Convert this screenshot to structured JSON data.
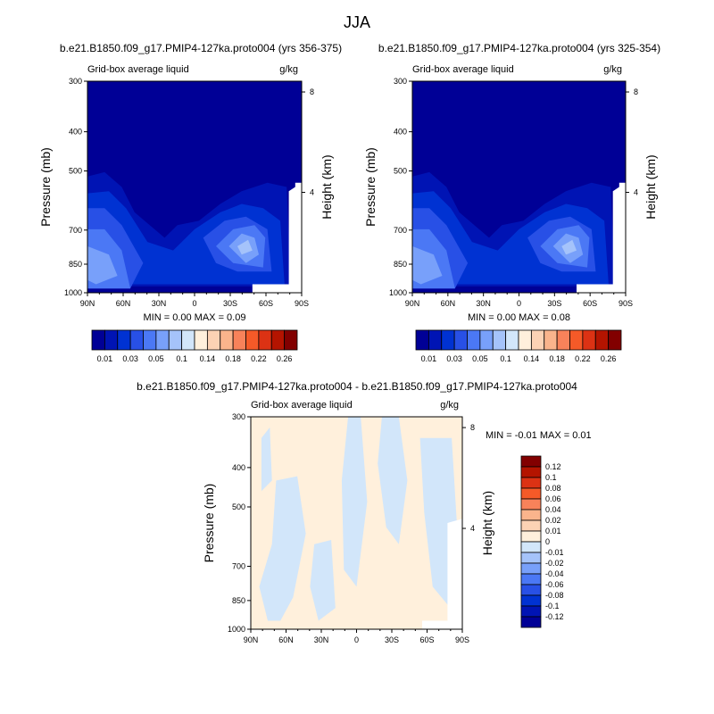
{
  "figure_title": "JJA",
  "colors": {
    "land_mask": "#ffffff",
    "axis": "#000000"
  },
  "chart_data": [
    {
      "type": "heatmap",
      "title": "b.e21.B1850.f09_g17.PMIP4-127ka.proto004 (yrs 356-375)",
      "left_label": "Grid-box average liquid",
      "right_label": "g/kg",
      "ylabel": "Pressure (mb)",
      "y2label": "Height (km)",
      "x_ticks": [
        "90N",
        "60N",
        "30N",
        "0",
        "30S",
        "60S",
        "90S"
      ],
      "x_values": [
        90,
        60,
        30,
        0,
        -30,
        -60,
        -90
      ],
      "y_ticks": [
        "300",
        "400",
        "500",
        "700",
        "850",
        "1000"
      ],
      "y_values": [
        300,
        400,
        500,
        700,
        850,
        1000
      ],
      "y2_ticks": [
        "8",
        "4"
      ],
      "y2_values": [
        8,
        4
      ],
      "ylim": [
        1000,
        300
      ],
      "stats": "MIN =   0.00   MAX =   0.09",
      "min": 0.0,
      "max": 0.09
    },
    {
      "type": "heatmap",
      "title": "b.e21.B1850.f09_g17.PMIP4-127ka.proto004 (yrs 325-354)",
      "left_label": "Grid-box average liquid",
      "right_label": "g/kg",
      "ylabel": "Pressure (mb)",
      "y2label": "Height (km)",
      "x_ticks": [
        "90N",
        "60N",
        "30N",
        "0",
        "30S",
        "60S",
        "90S"
      ],
      "x_values": [
        90,
        60,
        30,
        0,
        -30,
        -60,
        -90
      ],
      "y_ticks": [
        "300",
        "400",
        "500",
        "700",
        "850",
        "1000"
      ],
      "y_values": [
        300,
        400,
        500,
        700,
        850,
        1000
      ],
      "y2_ticks": [
        "8",
        "4"
      ],
      "y2_values": [
        8,
        4
      ],
      "ylim": [
        1000,
        300
      ],
      "stats": "MIN =   0.00   MAX =   0.08",
      "min": 0.0,
      "max": 0.08
    },
    {
      "type": "heatmap",
      "title": "b.e21.B1850.f09_g17.PMIP4-127ka.proto004 - b.e21.B1850.f09_g17.PMIP4-127ka.proto004",
      "left_label": "Grid-box average liquid",
      "right_label": "g/kg",
      "ylabel": "Pressure (mb)",
      "y2label": "Height (km)",
      "x_ticks": [
        "90N",
        "60N",
        "30N",
        "0",
        "30S",
        "60S",
        "90S"
      ],
      "x_values": [
        90,
        60,
        30,
        0,
        -30,
        -60,
        -90
      ],
      "y_ticks": [
        "300",
        "400",
        "500",
        "700",
        "850",
        "1000"
      ],
      "y_values": [
        300,
        400,
        500,
        700,
        850,
        1000
      ],
      "y2_ticks": [
        "8",
        "4"
      ],
      "y2_values": [
        8,
        4
      ],
      "ylim": [
        1000,
        300
      ],
      "stats": "MIN =  -0.01   MAX =   0.01",
      "min": -0.01,
      "max": 0.01
    }
  ],
  "colorbar_abs": {
    "colors": [
      "#000096",
      "#0014b4",
      "#0032d2",
      "#2850e6",
      "#4b78f5",
      "#78a0fa",
      "#a5c3fa",
      "#d2e6fa",
      "#fff0dc",
      "#fcd2b4",
      "#fab48c",
      "#f8825a",
      "#f55a28",
      "#dc3214",
      "#b41400",
      "#820000"
    ],
    "labels": [
      "0.01",
      "0.03",
      "0.05",
      "0.1",
      "0.14",
      "0.18",
      "0.22",
      "0.26"
    ]
  },
  "colorbar_diff": {
    "colors": [
      "#000096",
      "#0014b4",
      "#0032d2",
      "#2850e6",
      "#4b78f5",
      "#78a0fa",
      "#a5c3fa",
      "#d2e6fa",
      "#fff0dc",
      "#fcd2b4",
      "#fab48c",
      "#f8825a",
      "#f55a28",
      "#dc3214",
      "#b41400",
      "#820000"
    ],
    "labels": [
      "0.12",
      "0.1",
      "0.08",
      "0.06",
      "0.04",
      "0.02",
      "0.01",
      "0",
      "-0.01",
      "-0.02",
      "-0.04",
      "-0.06",
      "-0.08",
      "-0.1",
      "-0.12"
    ]
  }
}
